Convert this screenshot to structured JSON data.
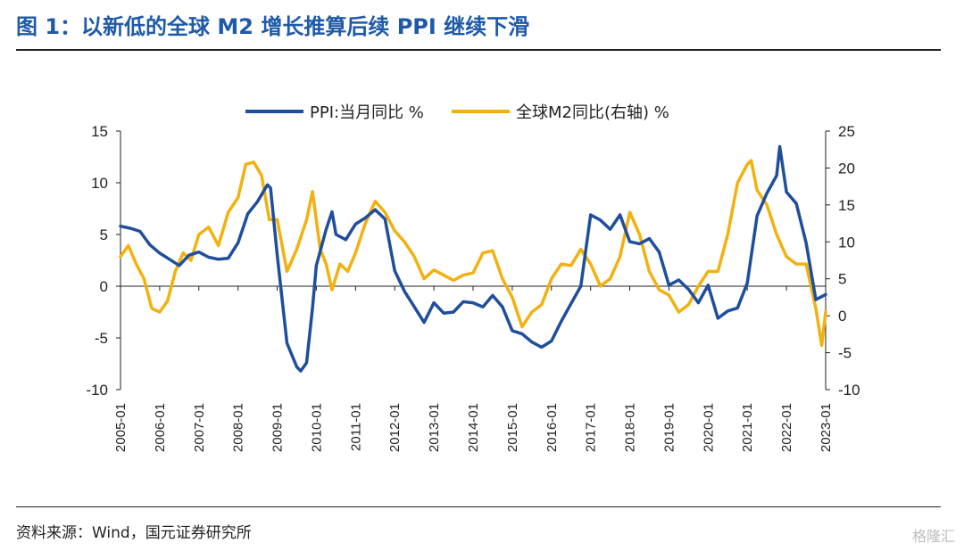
{
  "title": "图 1：以新低的全球 M2 增长推算后续 PPI 继续下滑",
  "source": "资料来源：Wind，国元证券研究所",
  "watermark": "格隆汇",
  "chart_data": {
    "type": "line",
    "legend": [
      {
        "name": "PPI:当月同比 %",
        "color": "#1f4e9c",
        "axis": "left"
      },
      {
        "name": "全球M2同比(右轴) %",
        "color": "#f2b10f",
        "axis": "right"
      }
    ],
    "legend_position": "top-center",
    "grid": false,
    "y_left": {
      "min": -10,
      "max": 15,
      "ticks": [
        "15",
        "10",
        "5",
        "0",
        "-5",
        "-10"
      ]
    },
    "y_right": {
      "min": -10,
      "max": 25,
      "ticks": [
        "25",
        "20",
        "15",
        "10",
        "5",
        "0",
        "-5",
        "-10"
      ]
    },
    "x_ticks": [
      "2005-01",
      "2006-01",
      "2007-01",
      "2008-01",
      "2009-01",
      "2010-01",
      "2011-01",
      "2012-01",
      "2013-01",
      "2014-01",
      "2015-01",
      "2016-01",
      "2017-01",
      "2018-01",
      "2019-01",
      "2020-01",
      "2021-01",
      "2022-01",
      "2023-01"
    ],
    "series": [
      {
        "name": "PPI:当月同比 %",
        "axis": "left",
        "color": "#1f4e9c",
        "points": [
          [
            2005.0,
            5.8
          ],
          [
            2005.25,
            5.6
          ],
          [
            2005.5,
            5.3
          ],
          [
            2005.75,
            4.0
          ],
          [
            2006.0,
            3.2
          ],
          [
            2006.25,
            2.6
          ],
          [
            2006.5,
            2.0
          ],
          [
            2006.75,
            3.0
          ],
          [
            2007.0,
            3.3
          ],
          [
            2007.25,
            2.8
          ],
          [
            2007.5,
            2.6
          ],
          [
            2007.75,
            2.7
          ],
          [
            2008.0,
            4.2
          ],
          [
            2008.25,
            7.0
          ],
          [
            2008.5,
            8.2
          ],
          [
            2008.75,
            9.8
          ],
          [
            2008.83,
            9.5
          ],
          [
            2009.0,
            3.0
          ],
          [
            2009.25,
            -5.5
          ],
          [
            2009.5,
            -7.8
          ],
          [
            2009.6,
            -8.2
          ],
          [
            2009.75,
            -7.4
          ],
          [
            2009.9,
            -2.1
          ],
          [
            2010.0,
            2.0
          ],
          [
            2010.25,
            5.5
          ],
          [
            2010.4,
            7.2
          ],
          [
            2010.5,
            5.0
          ],
          [
            2010.75,
            4.5
          ],
          [
            2011.0,
            6.0
          ],
          [
            2011.25,
            6.6
          ],
          [
            2011.5,
            7.4
          ],
          [
            2011.75,
            6.5
          ],
          [
            2012.0,
            1.5
          ],
          [
            2012.25,
            -0.5
          ],
          [
            2012.5,
            -2.0
          ],
          [
            2012.75,
            -3.5
          ],
          [
            2013.0,
            -1.6
          ],
          [
            2013.25,
            -2.6
          ],
          [
            2013.5,
            -2.5
          ],
          [
            2013.75,
            -1.5
          ],
          [
            2014.0,
            -1.6
          ],
          [
            2014.25,
            -2.0
          ],
          [
            2014.5,
            -0.9
          ],
          [
            2014.75,
            -2.0
          ],
          [
            2015.0,
            -4.3
          ],
          [
            2015.25,
            -4.6
          ],
          [
            2015.5,
            -5.4
          ],
          [
            2015.75,
            -5.9
          ],
          [
            2016.0,
            -5.3
          ],
          [
            2016.25,
            -3.4
          ],
          [
            2016.5,
            -1.7
          ],
          [
            2016.75,
            0.0
          ],
          [
            2017.0,
            6.9
          ],
          [
            2017.25,
            6.4
          ],
          [
            2017.5,
            5.5
          ],
          [
            2017.75,
            6.9
          ],
          [
            2018.0,
            4.3
          ],
          [
            2018.25,
            4.1
          ],
          [
            2018.5,
            4.6
          ],
          [
            2018.75,
            3.3
          ],
          [
            2019.0,
            0.1
          ],
          [
            2019.25,
            0.6
          ],
          [
            2019.5,
            -0.3
          ],
          [
            2019.75,
            -1.6
          ],
          [
            2020.0,
            0.1
          ],
          [
            2020.25,
            -3.1
          ],
          [
            2020.5,
            -2.4
          ],
          [
            2020.75,
            -2.1
          ],
          [
            2021.0,
            0.3
          ],
          [
            2021.25,
            6.8
          ],
          [
            2021.5,
            9.0
          ],
          [
            2021.75,
            10.7
          ],
          [
            2021.83,
            13.5
          ],
          [
            2022.0,
            9.1
          ],
          [
            2022.25,
            8.0
          ],
          [
            2022.5,
            4.2
          ],
          [
            2022.75,
            -1.3
          ],
          [
            2023.0,
            -0.8
          ]
        ]
      },
      {
        "name": "全球M2同比(右轴) %",
        "axis": "right",
        "color": "#f2b10f",
        "points": [
          [
            2005.0,
            8.0
          ],
          [
            2005.2,
            9.5
          ],
          [
            2005.4,
            7.0
          ],
          [
            2005.6,
            5.0
          ],
          [
            2005.8,
            1.0
          ],
          [
            2006.0,
            0.5
          ],
          [
            2006.2,
            2.0
          ],
          [
            2006.4,
            6.0
          ],
          [
            2006.6,
            8.5
          ],
          [
            2006.8,
            7.5
          ],
          [
            2007.0,
            11.0
          ],
          [
            2007.25,
            12.0
          ],
          [
            2007.5,
            9.5
          ],
          [
            2007.75,
            14.0
          ],
          [
            2008.0,
            16.0
          ],
          [
            2008.2,
            20.5
          ],
          [
            2008.4,
            20.8
          ],
          [
            2008.6,
            19.0
          ],
          [
            2008.8,
            13.0
          ],
          [
            2009.0,
            13.0
          ],
          [
            2009.25,
            6.0
          ],
          [
            2009.5,
            9.0
          ],
          [
            2009.75,
            13.0
          ],
          [
            2009.9,
            16.8
          ],
          [
            2010.1,
            9.0
          ],
          [
            2010.25,
            7.0
          ],
          [
            2010.4,
            3.5
          ],
          [
            2010.6,
            7.0
          ],
          [
            2010.8,
            6.0
          ],
          [
            2011.0,
            8.5
          ],
          [
            2011.25,
            12.5
          ],
          [
            2011.5,
            15.5
          ],
          [
            2011.75,
            14.0
          ],
          [
            2012.0,
            11.5
          ],
          [
            2012.25,
            10.0
          ],
          [
            2012.5,
            8.0
          ],
          [
            2012.75,
            5.0
          ],
          [
            2013.0,
            6.2
          ],
          [
            2013.25,
            5.5
          ],
          [
            2013.5,
            4.8
          ],
          [
            2013.75,
            5.5
          ],
          [
            2014.0,
            5.8
          ],
          [
            2014.25,
            8.5
          ],
          [
            2014.5,
            8.8
          ],
          [
            2014.75,
            5.0
          ],
          [
            2015.0,
            2.5
          ],
          [
            2015.25,
            -1.5
          ],
          [
            2015.5,
            0.5
          ],
          [
            2015.75,
            1.5
          ],
          [
            2016.0,
            5.0
          ],
          [
            2016.25,
            7.0
          ],
          [
            2016.5,
            6.8
          ],
          [
            2016.75,
            9.0
          ],
          [
            2017.0,
            7.0
          ],
          [
            2017.25,
            4.0
          ],
          [
            2017.5,
            5.0
          ],
          [
            2017.75,
            8.0
          ],
          [
            2018.0,
            14.0
          ],
          [
            2018.25,
            11.0
          ],
          [
            2018.5,
            6.0
          ],
          [
            2018.75,
            3.5
          ],
          [
            2019.0,
            2.8
          ],
          [
            2019.25,
            0.5
          ],
          [
            2019.5,
            1.5
          ],
          [
            2019.75,
            4.0
          ],
          [
            2020.0,
            6.0
          ],
          [
            2020.25,
            6.0
          ],
          [
            2020.5,
            11.0
          ],
          [
            2020.75,
            18.0
          ],
          [
            2021.0,
            20.5
          ],
          [
            2021.1,
            21.0
          ],
          [
            2021.25,
            17.0
          ],
          [
            2021.5,
            15.0
          ],
          [
            2021.75,
            11.0
          ],
          [
            2022.0,
            8.0
          ],
          [
            2022.25,
            7.0
          ],
          [
            2022.5,
            7.0
          ],
          [
            2022.75,
            1.0
          ],
          [
            2022.9,
            -4.0
          ],
          [
            2023.0,
            0.5
          ]
        ]
      }
    ]
  }
}
